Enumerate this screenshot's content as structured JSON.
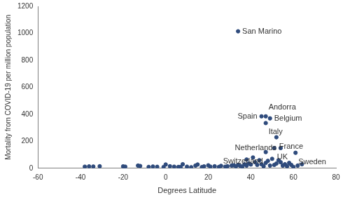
{
  "chart_data": {
    "type": "scatter",
    "x_label": "Degrees Latitude",
    "y_label": "Mortality from COVID-19 per million population",
    "xlim": [
      -60,
      80
    ],
    "xticks": [
      -60,
      -40,
      -20,
      0,
      20,
      40,
      60,
      80
    ],
    "ylim": [
      0,
      1200
    ],
    "yticks": [
      0,
      200,
      400,
      600,
      800,
      1000,
      1200
    ],
    "grid": false,
    "color": "#2f4b7c",
    "marker": "circle",
    "x": [
      34,
      45,
      47,
      47,
      49,
      52,
      51,
      54,
      47,
      61,
      -38,
      -36,
      -34,
      -31,
      -20,
      -19,
      -13,
      -12,
      -8,
      -6,
      -4,
      -1,
      0,
      2,
      4,
      6,
      7,
      8,
      10,
      12,
      14,
      15,
      17,
      18,
      20,
      21,
      23,
      25,
      26,
      28,
      29,
      31,
      32,
      33,
      34,
      35,
      36,
      37,
      38,
      38,
      39,
      40,
      41,
      42,
      43,
      44,
      45,
      46,
      47,
      48,
      49,
      50,
      51,
      52,
      53,
      54,
      55,
      56,
      57,
      58,
      59,
      60,
      62,
      64
    ],
    "values": [
      1015,
      385,
      385,
      335,
      370,
      230,
      150,
      150,
      120,
      115,
      12,
      14,
      13,
      15,
      14,
      12,
      20,
      17,
      10,
      13,
      11,
      9,
      28,
      15,
      12,
      10,
      9,
      30,
      12,
      8,
      20,
      28,
      9,
      14,
      22,
      12,
      15,
      10,
      18,
      12,
      15,
      20,
      22,
      15,
      25,
      18,
      12,
      30,
      65,
      20,
      35,
      28,
      80,
      45,
      25,
      60,
      30,
      15,
      40,
      55,
      20,
      70,
      25,
      35,
      60,
      45,
      20,
      30,
      15,
      40,
      25,
      10,
      20,
      30
    ],
    "annotations": [
      {
        "text": "San Marino",
        "x": 34,
        "y": 1015
      },
      {
        "text": "Belgium",
        "x": 49,
        "y": 370
      },
      {
        "text": "Spain",
        "x": 45,
        "y": 385
      },
      {
        "text": "Andorra",
        "x": 47,
        "y": 385
      },
      {
        "text": "Italy",
        "x": 47,
        "y": 335
      },
      {
        "text": "France",
        "x": 52,
        "y": 230
      },
      {
        "text": "Netherlands",
        "x": 54,
        "y": 150
      },
      {
        "text": "UK",
        "x": 51,
        "y": 150
      },
      {
        "text": "Switzerland",
        "x": 47,
        "y": 120
      },
      {
        "text": "Sweden",
        "x": 61,
        "y": 115
      }
    ]
  }
}
